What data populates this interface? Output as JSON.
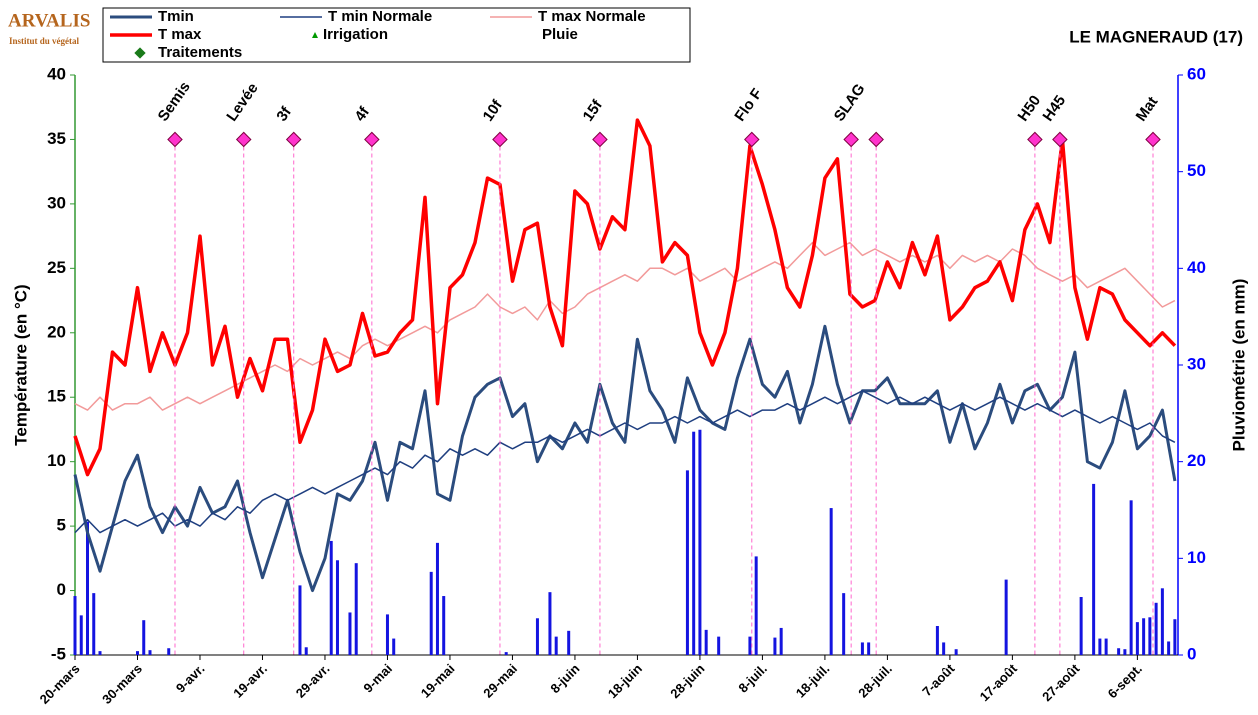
{
  "logo": {
    "name": "ARVALIS",
    "tagline": "Institut du végétal"
  },
  "chart_data": {
    "type": "line",
    "title": "LE MAGNERAUD (17)",
    "y_label": "Température (en °C)",
    "y2_label": "Pluviométrie (en mm)",
    "xlim": [
      0,
      176.5
    ],
    "xticks": [
      {
        "value": 0,
        "label": "20-mars"
      },
      {
        "value": 10,
        "label": "30-mars"
      },
      {
        "value": 20,
        "label": "9-avr."
      },
      {
        "value": 30,
        "label": "19-avr."
      },
      {
        "value": 40,
        "label": "29-avr."
      },
      {
        "value": 50,
        "label": "9-mai"
      },
      {
        "value": 60,
        "label": "19-mai"
      },
      {
        "value": 70,
        "label": "29-mai"
      },
      {
        "value": 80,
        "label": "8-juin"
      },
      {
        "value": 90,
        "label": "18-juin"
      },
      {
        "value": 100,
        "label": "28-juin"
      },
      {
        "value": 110,
        "label": "8-juil."
      },
      {
        "value": 120,
        "label": "18-juil."
      },
      {
        "value": 130,
        "label": "28-juil."
      },
      {
        "value": 140,
        "label": "7-août"
      },
      {
        "value": 150,
        "label": "17-août"
      },
      {
        "value": 160,
        "label": "27-août"
      },
      {
        "value": 170,
        "label": "6-sept."
      }
    ],
    "ylim": [
      -5,
      40
    ],
    "yticks": [
      -5,
      0,
      5,
      10,
      15,
      20,
      25,
      30,
      35,
      40
    ],
    "y2lim": [
      0,
      60
    ],
    "y2ticks": [
      0,
      10,
      20,
      30,
      40,
      50,
      60
    ],
    "x": [
      0,
      2,
      4,
      6,
      8,
      10,
      12,
      14,
      16,
      18,
      20,
      22,
      24,
      26,
      28,
      30,
      32,
      34,
      36,
      38,
      40,
      42,
      44,
      46,
      48,
      50,
      52,
      54,
      56,
      58,
      60,
      62,
      64,
      66,
      68,
      70,
      72,
      74,
      76,
      78,
      80,
      82,
      84,
      86,
      88,
      90,
      92,
      94,
      96,
      98,
      100,
      102,
      104,
      106,
      108,
      110,
      112,
      114,
      116,
      118,
      120,
      122,
      124,
      126,
      128,
      130,
      132,
      134,
      136,
      138,
      140,
      142,
      144,
      146,
      148,
      150,
      152,
      154,
      156,
      158,
      160,
      162,
      164,
      166,
      168,
      170,
      172,
      174,
      176
    ],
    "series": [
      {
        "name": "Tmin",
        "color": "#2b4c7e",
        "width": 3,
        "values": [
          9,
          4.5,
          1.5,
          5,
          8.5,
          10.5,
          6.5,
          4.5,
          6.5,
          5,
          8,
          6,
          6.5,
          8.5,
          4.5,
          1,
          4,
          7,
          3,
          0,
          2.5,
          7.5,
          7,
          8.5,
          11.5,
          7,
          11.5,
          11,
          15.5,
          7.5,
          7,
          12,
          15,
          16,
          16.5,
          13.5,
          14.5,
          10,
          12,
          11,
          13,
          11.5,
          16,
          13,
          11.5,
          19.5,
          15.5,
          14,
          11.5,
          16.5,
          14,
          13,
          12.5,
          16.5,
          19.5,
          16,
          15,
          17,
          13,
          16,
          20.5,
          16,
          13,
          15.5,
          15.5,
          16.5,
          14.5,
          14.5,
          14.5,
          15.5,
          11.5,
          14.5,
          11,
          13,
          16,
          13,
          15.5,
          16,
          14,
          15,
          18.5,
          10,
          9.5,
          11.5,
          15.5,
          11,
          12,
          14,
          8.5
        ]
      },
      {
        "name": "T min Normale",
        "color": "#1f3f80",
        "width": 1.5,
        "values": [
          4.5,
          5.5,
          4.5,
          5,
          5.5,
          5,
          5.5,
          6,
          5,
          5.5,
          5,
          6,
          5.5,
          6.5,
          6,
          7,
          7.5,
          7,
          7.5,
          8,
          7.5,
          8,
          8.5,
          9,
          9.5,
          9,
          10,
          9.5,
          10.5,
          10,
          11,
          10.5,
          11,
          10.5,
          11.5,
          11,
          11.5,
          11.5,
          12,
          11.5,
          12,
          12.5,
          12,
          12.5,
          13,
          12.5,
          13,
          13,
          13.5,
          13,
          13.5,
          13,
          13.5,
          14,
          13.5,
          14,
          14,
          14.5,
          14,
          14.5,
          15,
          14.5,
          15,
          15.5,
          15,
          14.5,
          15,
          14.5,
          15,
          14.5,
          14,
          14.5,
          14,
          14.5,
          15,
          14.5,
          14,
          14.5,
          14,
          13.5,
          14,
          13.5,
          13,
          13.5,
          13,
          12.5,
          13,
          12,
          11.5
        ]
      },
      {
        "name": "T max Normale",
        "color": "#f29a9a",
        "width": 1.5,
        "values": [
          14.5,
          14,
          15,
          14,
          14.5,
          14.5,
          15,
          14,
          14.5,
          15,
          14.5,
          15,
          15.5,
          16,
          16.5,
          17,
          17.5,
          17,
          18,
          17.5,
          18,
          18.5,
          18,
          19,
          19.5,
          19,
          19.5,
          20,
          20.5,
          20,
          21,
          21.5,
          22,
          23,
          22,
          21.5,
          22,
          21,
          22.5,
          21.5,
          22,
          23,
          23.5,
          24,
          24.5,
          24,
          25,
          25,
          24.5,
          25,
          24,
          24.5,
          25,
          24,
          24.5,
          25,
          25.5,
          25,
          26,
          27,
          26,
          26.5,
          27,
          26,
          26.5,
          26,
          25.5,
          26,
          25.5,
          26,
          25,
          26,
          25.5,
          26,
          25.5,
          26.5,
          26,
          25,
          24.5,
          24,
          24.5,
          23.5,
          24,
          24.5,
          25,
          24,
          23,
          22,
          22.5
        ]
      },
      {
        "name": "T max",
        "color": "#ff0000",
        "width": 3.5,
        "values": [
          12,
          9,
          11,
          18.5,
          17.5,
          23.5,
          17,
          20,
          17.5,
          20,
          27.5,
          17.5,
          20.5,
          15,
          18,
          15.5,
          19.5,
          19.5,
          11.5,
          14,
          19.5,
          17,
          17.5,
          21.5,
          18.2,
          18.5,
          20,
          21,
          30.5,
          14.5,
          23.5,
          24.5,
          27,
          32,
          31.5,
          24,
          28,
          28.5,
          22,
          19,
          31,
          30,
          26.5,
          29,
          28,
          36.5,
          34.5,
          25.5,
          27,
          26,
          20,
          17.5,
          20,
          25,
          34.5,
          31.5,
          28,
          23.5,
          22,
          26,
          32,
          33.5,
          23,
          22,
          22.5,
          25.5,
          23.5,
          27,
          24.5,
          27.5,
          21,
          22,
          23.5,
          24,
          25.5,
          22.5,
          28,
          30,
          27,
          35,
          23.5,
          19.5,
          23.5,
          23,
          21,
          20,
          19,
          20,
          19
        ]
      },
      {
        "name": "Pluie",
        "type": "bar",
        "axis": "y2",
        "color": "#1414e0",
        "x": [
          0,
          1,
          2,
          3,
          4,
          10,
          11,
          12,
          15,
          36,
          37,
          41,
          42,
          44,
          45,
          50,
          51,
          57,
          58,
          59,
          69,
          74,
          76,
          77,
          79,
          98,
          99,
          100,
          101,
          103,
          108,
          109,
          112,
          113,
          121,
          123,
          126,
          127,
          138,
          139,
          141,
          149,
          161,
          163,
          164,
          165,
          167,
          168,
          169,
          170,
          171,
          172,
          173,
          174,
          175,
          176
        ],
        "values": [
          6.1,
          4.1,
          13.8,
          6.4,
          0.4,
          0.4,
          3.6,
          0.5,
          0.7,
          7.2,
          0.8,
          11.8,
          9.8,
          4.4,
          9.5,
          4.2,
          1.7,
          8.6,
          11.6,
          6.1,
          0.3,
          3.8,
          6.5,
          1.9,
          2.5,
          19.1,
          23.1,
          23.3,
          2.6,
          1.9,
          1.9,
          10.2,
          1.8,
          2.8,
          15.2,
          6.4,
          1.3,
          1.3,
          3,
          1.3,
          0.6,
          7.8,
          6,
          17.7,
          1.7,
          1.7,
          0.7,
          0.6,
          16,
          3.4,
          3.8,
          3.9,
          5.4,
          6.9,
          1.4,
          3.7
        ]
      }
    ],
    "irrigation": {
      "name": "Irrigation",
      "color": "#009900"
    },
    "treatments": {
      "name": "Traitements",
      "color": "#1a7a1a"
    },
    "stages": {
      "color": "#ff66cc",
      "y": 35,
      "x": [
        16,
        27,
        35,
        47.5,
        68,
        84,
        108.3,
        124.2,
        128.2,
        153.6,
        157.6,
        172.5
      ],
      "labels": [
        "Semis",
        "Levée",
        "3f",
        "4f",
        "10f",
        "15f",
        "Flo F",
        "SLAG",
        null,
        "H50",
        "H45",
        "Mat"
      ]
    }
  }
}
